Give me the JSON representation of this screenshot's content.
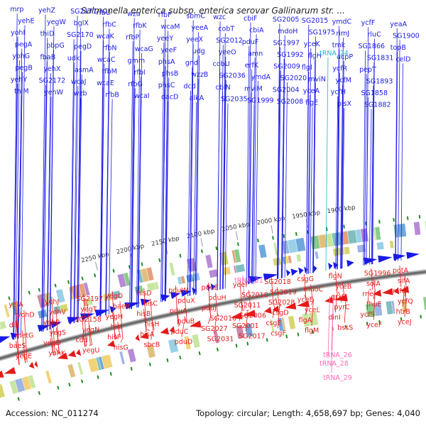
{
  "title": "Salmonella enterica subsp. enterica serovar Gallinarum str. ...",
  "accession_label": "Accession: NC_011274",
  "summary_label": "Topology: circular; Length: 4,658,697 bp; Genes: 4,040",
  "colors": {
    "forward": "#1a1ae6",
    "reverse": "#e61a1a",
    "trna": "#ff69b4",
    "trna_alt": "#20b2d0",
    "backbone": "#808080",
    "tick": "#228b22"
  },
  "scale_ticks": [
    {
      "label": "1900 kbp",
      "bp": 1900000
    },
    {
      "label": "1950 kbp",
      "bp": 1950000
    },
    {
      "label": "2000 kbp",
      "bp": 2000000
    },
    {
      "label": "2050 kbp",
      "bp": 2050000
    },
    {
      "label": "2100 kbp",
      "bp": 2100000
    },
    {
      "label": "2150 kbp",
      "bp": 2150000
    },
    {
      "label": "2200 kbp",
      "bp": 2200000
    },
    {
      "label": "2250 kbp",
      "bp": 2250000
    }
  ],
  "forward_genes": [
    "mrp",
    "yehE",
    "yohI",
    "pegA",
    "yohG",
    "pegB",
    "yehY",
    "thiM",
    "yehZ",
    "yegW",
    "thiD",
    "pbpG",
    "fbaB",
    "yehX",
    "SG2172",
    "yehW",
    "SG2171",
    "bglX",
    "SG2170",
    "pegD",
    "udk",
    "asmA",
    "wcaJ",
    "wzb",
    "rfbU",
    "rfbC",
    "wcaK",
    "rfbN",
    "wcaC",
    "rfbM",
    "wcaE",
    "rfbB",
    "wza",
    "rfbK",
    "rfbP",
    "wcaG",
    "gmm",
    "rfbI",
    "rfbG",
    "wcaI",
    "rfbF",
    "wcaM",
    "yeeY",
    "yeeF",
    "phsA",
    "phsB",
    "phsC",
    "dacD",
    "sbmC",
    "yeeA",
    "yeeX",
    "udg",
    "gnd",
    "wzzB",
    "dcd",
    "alkA",
    "wzc",
    "cobT",
    "SG2012",
    "yeeO",
    "cobU",
    "SG2036",
    "cbiN",
    "SG2035",
    "cbiF",
    "cbiA",
    "pduF",
    "amn",
    "erfK",
    "ymdA",
    "mviM",
    "SG1999",
    "SG2005",
    "mdoH",
    "SG1997",
    "SG1992",
    "SG2009",
    "SG2020",
    "SG2004",
    "SG2008",
    "SG2015",
    "SG1975",
    "yceK",
    "flgH",
    "flgI",
    "mviN",
    "yceA",
    "flgE",
    "ymdC",
    "rimJ",
    "tmk",
    "acpP",
    "ycfR",
    "ycfM",
    "ycfH",
    "plsX",
    "ycfF",
    "rluC",
    "SG1866",
    "SG1831",
    "pepT",
    "SG1893",
    "SG1858",
    "SG1882",
    "yeaA",
    "SG1900",
    "topB",
    "celD"
  ],
  "reverse_genes": [
    "yeiA",
    "yohD",
    "dld",
    "metG",
    "baeS",
    "yegE",
    "yohJ",
    "yehV",
    "yehR",
    "yegS",
    "yegD",
    "yohK",
    "SG2197",
    "yegT",
    "SG2158",
    "yegN",
    "cdd",
    "yegU",
    "yegO",
    "baeR",
    "yegH",
    "hisI",
    "hisF",
    "hisG",
    "hisD",
    "hisC",
    "hisB",
    "hisH",
    "hisA",
    "sbcB",
    "pduW",
    "pduX",
    "pduA",
    "pduB",
    "pduC",
    "pduD",
    "pduE",
    "pduH",
    "pduJ",
    "SG2016",
    "SG2027",
    "SG2031",
    "yeeI",
    "SG2010",
    "SG2011",
    "SG2006",
    "SG2001",
    "SG2017",
    "SG2018",
    "SG2019",
    "SG2028",
    "csgD",
    "csgE",
    "csgF",
    "csgG",
    "mdoC",
    "yceE",
    "yceL",
    "flgA",
    "flgM",
    "flgN",
    "yceB",
    "grxB",
    "pyrC",
    "dinI",
    "bssS",
    "SG1996",
    "solA",
    "rne",
    "fhuE",
    "ycfS",
    "yceF",
    "potA",
    "sifA",
    "mfd",
    "ycfQ",
    "htrB",
    "yceJ"
  ],
  "trna_labels": [
    "tRNA_24",
    "tRNA_31",
    "tRNA_26",
    "tRNA_28",
    "tRNA_29"
  ]
}
